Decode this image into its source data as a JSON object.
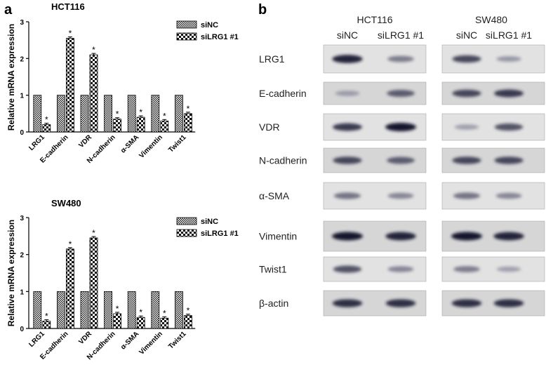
{
  "panels": {
    "a": "a",
    "b": "b"
  },
  "chart_data": [
    {
      "type": "bar",
      "title": "HCT116",
      "ylabel": "Relative mRNA expression",
      "ylim": [
        0,
        3
      ],
      "yticks": [
        "0",
        "1",
        "2",
        "3"
      ],
      "categories": [
        "LRG1",
        "E-cadherin",
        "VDR",
        "N-cadherin",
        "α-SMA",
        "Vimentin",
        "Twist1"
      ],
      "series": [
        {
          "name": "siNC",
          "values": [
            1,
            1,
            1,
            1,
            1,
            1,
            1
          ]
        },
        {
          "name": "siLRG1 #1",
          "values": [
            0.2,
            2.55,
            2.1,
            0.35,
            0.4,
            0.3,
            0.5
          ]
        }
      ],
      "significance": [
        "*",
        "*",
        "*",
        "*",
        "*",
        "*",
        "*"
      ],
      "legend_position": "top-right"
    },
    {
      "type": "bar",
      "title": "SW480",
      "ylabel": "Relative mRNA expression",
      "ylim": [
        0,
        3
      ],
      "yticks": [
        "0",
        "1",
        "2",
        "3"
      ],
      "categories": [
        "LRG1",
        "E-cadherin",
        "VDR",
        "N-cadherin",
        "α-SMA",
        "Vimentin",
        "Twist1"
      ],
      "series": [
        {
          "name": "siNC",
          "values": [
            1,
            1,
            1,
            1,
            1,
            1,
            1
          ]
        },
        {
          "name": "siLRG1 #1",
          "values": [
            0.2,
            2.15,
            2.45,
            0.4,
            0.3,
            0.28,
            0.35
          ]
        }
      ],
      "significance": [
        "*",
        "*",
        "*",
        "*",
        "*",
        "*",
        "*"
      ],
      "legend_position": "top-right"
    }
  ],
  "blot": {
    "cell_lines": [
      "HCT116",
      "SW480"
    ],
    "lane_labels": [
      "siNC",
      "siLRG1 #1"
    ],
    "proteins": [
      "LRG1",
      "E-cadherin",
      "VDR",
      "N-cadherin",
      "α-SMA",
      "Vimentin",
      "Twist1",
      "β-actin"
    ],
    "band_intensity": {
      "HCT116": [
        [
          0.95,
          0.55
        ],
        [
          0.35,
          0.7
        ],
        [
          0.85,
          1.0
        ],
        [
          0.8,
          0.7
        ],
        [
          0.6,
          0.5
        ],
        [
          1.0,
          0.95
        ],
        [
          0.75,
          0.5
        ],
        [
          0.9,
          0.9
        ]
      ],
      "SW480": [
        [
          0.8,
          0.4
        ],
        [
          0.8,
          0.85
        ],
        [
          0.35,
          0.75
        ],
        [
          0.8,
          0.8
        ],
        [
          0.6,
          0.5
        ],
        [
          1.0,
          0.95
        ],
        [
          0.55,
          0.35
        ],
        [
          0.9,
          0.9
        ]
      ]
    }
  }
}
